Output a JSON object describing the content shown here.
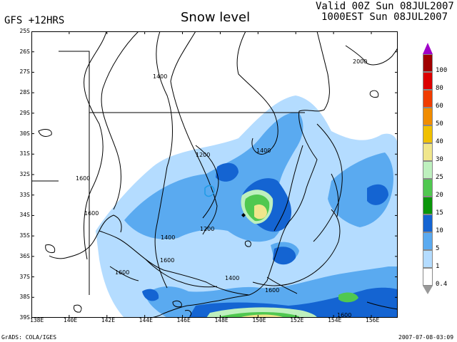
{
  "header": {
    "model": "GFS +12HRS",
    "title": "Snow level",
    "valid_line1": "Valid 00Z Sun 08JUL2007",
    "valid_line2": "1000EST Sun 08JUL2007"
  },
  "footer": {
    "credit": "GrADS: COLA/IGES",
    "timestamp": "2007-07-08-03:09"
  },
  "axes": {
    "lat_labels": [
      "25S",
      "26S",
      "27S",
      "28S",
      "29S",
      "30S",
      "31S",
      "32S",
      "33S",
      "34S",
      "35S",
      "36S",
      "37S",
      "38S",
      "39S"
    ],
    "lon_labels": [
      "138E",
      "140E",
      "142E",
      "144E",
      "146E",
      "148E",
      "150E",
      "152E",
      "154E",
      "156E"
    ]
  },
  "contour_labels": [
    "2000",
    "1400",
    "1400",
    "1200",
    "1200",
    "1600",
    "1600",
    "1400",
    "1600",
    "1600",
    "1400",
    "1600",
    "1600"
  ],
  "legend": {
    "labels": [
      "100",
      "80",
      "60",
      "50",
      "40",
      "30",
      "25",
      "20",
      "15",
      "10",
      "5",
      "1",
      "0.4"
    ],
    "colors": [
      "#a000c8",
      "#a00000",
      "#dc0000",
      "#f03c00",
      "#f08c00",
      "#f0c000",
      "#f0e68c",
      "#bef0be",
      "#50c850",
      "#0a960a",
      "#1464d2",
      "#5aaaf0",
      "#b4dcff",
      "#ffffff"
    ]
  }
}
